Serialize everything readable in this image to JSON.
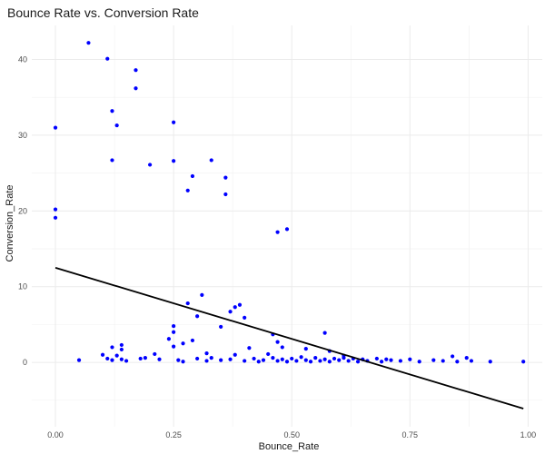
{
  "chart_data": {
    "type": "scatter",
    "title": "Bounce Rate vs. Conversion Rate",
    "xlabel": "Bounce_Rate",
    "ylabel": "Conversion_Rate",
    "xlim": [
      -0.05,
      1.03
    ],
    "ylim": [
      -8.5,
      44.5
    ],
    "x_ticks": [
      0.0,
      0.25,
      0.5,
      0.75,
      1.0
    ],
    "x_tick_labels": [
      "0.00",
      "0.25",
      "0.50",
      "0.75",
      "1.00"
    ],
    "y_ticks": [
      0,
      10,
      20,
      30,
      40
    ],
    "y_tick_labels": [
      "0",
      "10",
      "20",
      "30",
      "40"
    ],
    "grid": true,
    "legend": "none",
    "point_color": "#0000ff",
    "line_color": "#000000",
    "regression_line": {
      "x": [
        0.0,
        0.99
      ],
      "y": [
        12.5,
        -6.1
      ]
    },
    "points": [
      {
        "x": 0.0,
        "y": 31.0
      },
      {
        "x": 0.0,
        "y": 20.2
      },
      {
        "x": 0.0,
        "y": 19.1
      },
      {
        "x": 0.07,
        "y": 42.2
      },
      {
        "x": 0.11,
        "y": 40.1
      },
      {
        "x": 0.12,
        "y": 33.2
      },
      {
        "x": 0.13,
        "y": 31.3
      },
      {
        "x": 0.12,
        "y": 26.7
      },
      {
        "x": 0.17,
        "y": 38.6
      },
      {
        "x": 0.17,
        "y": 36.2
      },
      {
        "x": 0.25,
        "y": 31.7
      },
      {
        "x": 0.2,
        "y": 26.1
      },
      {
        "x": 0.25,
        "y": 26.6
      },
      {
        "x": 0.33,
        "y": 26.7
      },
      {
        "x": 0.29,
        "y": 24.6
      },
      {
        "x": 0.36,
        "y": 24.4
      },
      {
        "x": 0.28,
        "y": 22.7
      },
      {
        "x": 0.36,
        "y": 22.2
      },
      {
        "x": 0.47,
        "y": 17.2
      },
      {
        "x": 0.49,
        "y": 17.6
      },
      {
        "x": 0.31,
        "y": 8.9
      },
      {
        "x": 0.28,
        "y": 7.8
      },
      {
        "x": 0.38,
        "y": 7.3
      },
      {
        "x": 0.39,
        "y": 7.6
      },
      {
        "x": 0.37,
        "y": 6.7
      },
      {
        "x": 0.3,
        "y": 6.1
      },
      {
        "x": 0.4,
        "y": 5.9
      },
      {
        "x": 0.25,
        "y": 4.8
      },
      {
        "x": 0.35,
        "y": 4.7
      },
      {
        "x": 0.25,
        "y": 4.0
      },
      {
        "x": 0.57,
        "y": 3.9
      },
      {
        "x": 0.46,
        "y": 3.7
      },
      {
        "x": 0.24,
        "y": 3.1
      },
      {
        "x": 0.29,
        "y": 2.9
      },
      {
        "x": 0.47,
        "y": 2.7
      },
      {
        "x": 0.14,
        "y": 2.3
      },
      {
        "x": 0.27,
        "y": 2.5
      },
      {
        "x": 0.12,
        "y": 2.0
      },
      {
        "x": 0.14,
        "y": 1.7
      },
      {
        "x": 0.25,
        "y": 2.1
      },
      {
        "x": 0.41,
        "y": 1.9
      },
      {
        "x": 0.48,
        "y": 2.0
      },
      {
        "x": 0.53,
        "y": 1.8
      },
      {
        "x": 0.58,
        "y": 1.5
      },
      {
        "x": 0.32,
        "y": 1.2
      },
      {
        "x": 0.38,
        "y": 1.0
      },
      {
        "x": 0.21,
        "y": 1.1
      },
      {
        "x": 0.1,
        "y": 1.0
      },
      {
        "x": 0.13,
        "y": 0.9
      },
      {
        "x": 0.45,
        "y": 1.1
      },
      {
        "x": 0.61,
        "y": 0.9
      },
      {
        "x": 0.05,
        "y": 0.3
      },
      {
        "x": 0.11,
        "y": 0.5
      },
      {
        "x": 0.12,
        "y": 0.3
      },
      {
        "x": 0.14,
        "y": 0.4
      },
      {
        "x": 0.15,
        "y": 0.2
      },
      {
        "x": 0.18,
        "y": 0.5
      },
      {
        "x": 0.19,
        "y": 0.6
      },
      {
        "x": 0.22,
        "y": 0.4
      },
      {
        "x": 0.26,
        "y": 0.3
      },
      {
        "x": 0.27,
        "y": 0.1
      },
      {
        "x": 0.3,
        "y": 0.5
      },
      {
        "x": 0.32,
        "y": 0.2
      },
      {
        "x": 0.33,
        "y": 0.6
      },
      {
        "x": 0.35,
        "y": 0.3
      },
      {
        "x": 0.37,
        "y": 0.4
      },
      {
        "x": 0.4,
        "y": 0.2
      },
      {
        "x": 0.42,
        "y": 0.5
      },
      {
        "x": 0.43,
        "y": 0.1
      },
      {
        "x": 0.44,
        "y": 0.3
      },
      {
        "x": 0.46,
        "y": 0.6
      },
      {
        "x": 0.47,
        "y": 0.2
      },
      {
        "x": 0.48,
        "y": 0.4
      },
      {
        "x": 0.49,
        "y": 0.1
      },
      {
        "x": 0.5,
        "y": 0.5
      },
      {
        "x": 0.51,
        "y": 0.2
      },
      {
        "x": 0.52,
        "y": 0.7
      },
      {
        "x": 0.53,
        "y": 0.3
      },
      {
        "x": 0.54,
        "y": 0.1
      },
      {
        "x": 0.55,
        "y": 0.6
      },
      {
        "x": 0.56,
        "y": 0.2
      },
      {
        "x": 0.57,
        "y": 0.4
      },
      {
        "x": 0.58,
        "y": 0.1
      },
      {
        "x": 0.59,
        "y": 0.5
      },
      {
        "x": 0.6,
        "y": 0.3
      },
      {
        "x": 0.61,
        "y": 0.6
      },
      {
        "x": 0.62,
        "y": 0.2
      },
      {
        "x": 0.63,
        "y": 0.5
      },
      {
        "x": 0.64,
        "y": 0.1
      },
      {
        "x": 0.65,
        "y": 0.4
      },
      {
        "x": 0.66,
        "y": 0.2
      },
      {
        "x": 0.68,
        "y": 0.5
      },
      {
        "x": 0.69,
        "y": 0.1
      },
      {
        "x": 0.7,
        "y": 0.4
      },
      {
        "x": 0.71,
        "y": 0.3
      },
      {
        "x": 0.73,
        "y": 0.2
      },
      {
        "x": 0.75,
        "y": 0.4
      },
      {
        "x": 0.77,
        "y": 0.1
      },
      {
        "x": 0.8,
        "y": 0.3
      },
      {
        "x": 0.82,
        "y": 0.2
      },
      {
        "x": 0.84,
        "y": 0.8
      },
      {
        "x": 0.85,
        "y": 0.1
      },
      {
        "x": 0.87,
        "y": 0.6
      },
      {
        "x": 0.88,
        "y": 0.2
      },
      {
        "x": 0.92,
        "y": 0.1
      },
      {
        "x": 0.99,
        "y": 0.1
      }
    ]
  }
}
